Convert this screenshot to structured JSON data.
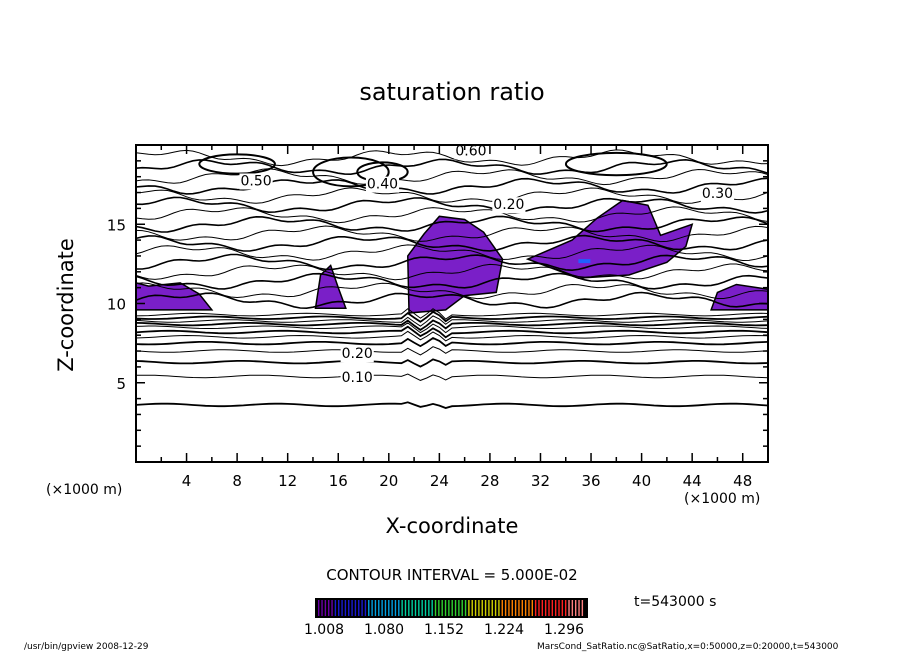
{
  "chart_data": {
    "type": "heatmap",
    "title": "saturation ratio",
    "xlabel": "X-coordinate",
    "ylabel": "Z-coordinate",
    "x_unit": "(×1000 m)",
    "z_unit": "(×1000 m)",
    "xlim": [
      0,
      50
    ],
    "ylim": [
      0,
      20
    ],
    "x_ticks": [
      "4",
      "8",
      "12",
      "16",
      "20",
      "24",
      "28",
      "32",
      "36",
      "40",
      "44",
      "48"
    ],
    "y_ticks": [
      "5",
      "10",
      "15"
    ],
    "contour_interval_label": "CONTOUR INTERVAL = 5.000E-02",
    "contour_labels": [
      {
        "text": "0.60",
        "x": 26.5,
        "z": 19.6
      },
      {
        "text": "0.50",
        "x": 9.5,
        "z": 17.7
      },
      {
        "text": "0.40",
        "x": 19.5,
        "z": 17.5
      },
      {
        "text": "0.20",
        "x": 29.5,
        "z": 16.2
      },
      {
        "text": "0.30",
        "x": 46,
        "z": 16.9
      },
      {
        "text": "0.20",
        "x": 17.5,
        "z": 6.8
      },
      {
        "text": "0.10",
        "x": 17.5,
        "z": 5.3
      }
    ],
    "lower_contours": [
      {
        "level": 0.05,
        "z": 3.6
      },
      {
        "level": 0.1,
        "z": 5.4
      },
      {
        "level": 0.15,
        "z": 6.3
      },
      {
        "level": 0.2,
        "z": 7.0
      },
      {
        "level": 0.25,
        "z": 7.5
      },
      {
        "level": 0.3,
        "z": 7.9
      },
      {
        "level": 0.35,
        "z": 8.2
      },
      {
        "level": 0.4,
        "z": 8.5
      },
      {
        "level": 0.45,
        "z": 8.7
      },
      {
        "level": 0.5,
        "z": 8.9
      },
      {
        "level": 0.55,
        "z": 9.1
      },
      {
        "level": 0.6,
        "z": 9.3
      }
    ],
    "shaded_regions_x_z": [
      [
        [
          0,
          9.6
        ],
        [
          6,
          9.6
        ],
        [
          5,
          10.6
        ],
        [
          3.5,
          11.3
        ],
        [
          1,
          11.1
        ],
        [
          0,
          11.3
        ]
      ],
      [
        [
          14.2,
          9.7
        ],
        [
          16.6,
          9.7
        ],
        [
          16,
          11
        ],
        [
          15.4,
          12.4
        ],
        [
          14.6,
          11.8
        ]
      ],
      [
        [
          21.6,
          9.4
        ],
        [
          24.5,
          9.6
        ],
        [
          26,
          10.5
        ],
        [
          28.5,
          10.7
        ],
        [
          29,
          12.8
        ],
        [
          27.5,
          14.5
        ],
        [
          26,
          15.3
        ],
        [
          24,
          15.5
        ],
        [
          22.8,
          14.4
        ],
        [
          21.5,
          13
        ]
      ],
      [
        [
          31,
          12.8
        ],
        [
          35,
          11.6
        ],
        [
          39,
          11.8
        ],
        [
          42,
          12.6
        ],
        [
          43.5,
          13.6
        ],
        [
          44,
          15
        ],
        [
          41.5,
          14.3
        ],
        [
          40.5,
          16.2
        ],
        [
          38.5,
          16.5
        ],
        [
          36.5,
          15.4
        ],
        [
          34.5,
          14
        ]
      ],
      [
        [
          45.5,
          9.6
        ],
        [
          50,
          9.6
        ],
        [
          50,
          10.9
        ],
        [
          47.5,
          11.2
        ],
        [
          46,
          10.7
        ]
      ]
    ],
    "colorbar": {
      "ticks": [
        "1.008",
        "1.080",
        "1.152",
        "1.224",
        "1.296"
      ],
      "colors": [
        "#6a00a8",
        "#1a1ad0",
        "#00a0e0",
        "#00d0a0",
        "#30d030",
        "#d0d000",
        "#ff8000",
        "#ff2020",
        "#ff8080"
      ],
      "shade_color": "#7a1fc8",
      "highlight_color": "#2060ff"
    }
  },
  "time_label": "t=543000 s",
  "footer": {
    "left": "/usr/bin/gpview   2008-12-29",
    "right": "MarsCond_SatRatio.nc@SatRatio,x=0:50000,z=0:20000,t=543000"
  }
}
